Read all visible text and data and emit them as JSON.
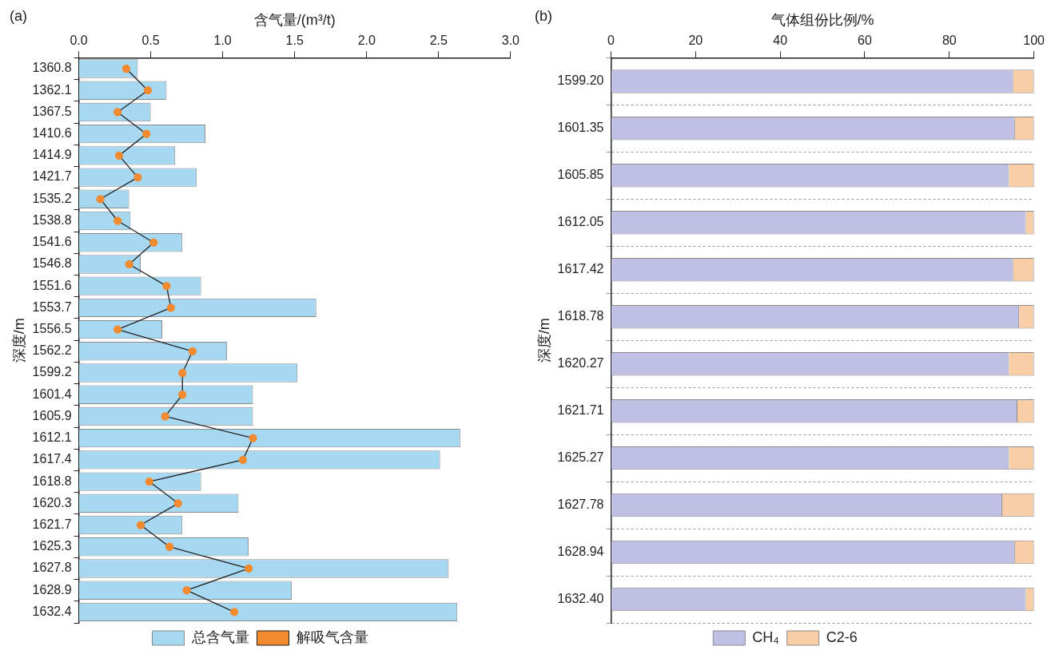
{
  "chart_data": [
    {
      "type": "bar",
      "orientation": "horizontal",
      "title": "(a)",
      "xlabel": "含气量/(m³/t)",
      "ylabel": "深度/m",
      "xlim": [
        0,
        3
      ],
      "xticks": [
        {
          "value": 0,
          "label": "0.0"
        },
        0.5,
        {
          "value": 1,
          "label": "1.0"
        },
        1.5,
        {
          "value": 2,
          "label": "2.0"
        },
        2.5,
        {
          "value": 3,
          "label": "3.0"
        }
      ],
      "legend": "bottom",
      "marker": "circle",
      "categories": [
        "1360.8",
        "1362.1",
        "1367.5",
        "1410.6",
        "1414.9",
        "1421.7",
        "1535.2",
        "1538.8",
        "1541.6",
        "1546.8",
        "1551.6",
        "1553.7",
        "1556.5",
        "1562.2",
        "1599.2",
        "1601.4",
        "1605.9",
        "1612.1",
        "1617.4",
        "1618.8",
        "1620.3",
        "1621.7",
        "1625.3",
        "1627.8",
        "1628.9",
        "1632.4"
      ],
      "series": [
        {
          "name": "总含气量",
          "color": "#a6d8f2",
          "values": [
            0.41,
            0.61,
            0.5,
            0.88,
            0.67,
            0.82,
            0.35,
            0.36,
            0.72,
            0.43,
            0.85,
            1.65,
            0.58,
            1.03,
            1.52,
            1.21,
            1.21,
            2.65,
            2.51,
            0.85,
            1.11,
            0.72,
            1.18,
            2.57,
            1.48,
            2.63
          ]
        },
        {
          "name": "解吸气含量",
          "type": "line",
          "color": "#f28a30",
          "values": [
            0.33,
            0.48,
            0.27,
            0.47,
            0.28,
            0.41,
            0.15,
            0.27,
            0.52,
            0.35,
            0.61,
            0.64,
            0.27,
            0.79,
            0.72,
            0.72,
            0.6,
            1.21,
            1.14,
            0.49,
            0.69,
            0.43,
            0.63,
            1.18,
            0.75,
            1.08
          ]
        }
      ]
    },
    {
      "type": "bar",
      "orientation": "horizontal",
      "stacked": true,
      "title": "(b)",
      "xlabel": "气体组份比例/%",
      "ylabel": "深度/m",
      "xlim": [
        0,
        100
      ],
      "xticks": [
        0,
        20,
        40,
        60,
        80,
        100
      ],
      "legend": "bottom",
      "grid": "y",
      "categories": [
        "1599.20",
        "1601.35",
        "1605.85",
        "1612.05",
        "1617.42",
        "1618.78",
        "1620.27",
        "1621.71",
        "1625.27",
        "1627.78",
        "1628.94",
        "1632.40"
      ],
      "series": [
        {
          "name": "CH₄",
          "color": "#c0c0e4",
          "values": [
            95.1,
            95.5,
            94.1,
            98.1,
            95.1,
            96.5,
            94.1,
            96.1,
            94.1,
            92.5,
            95.5,
            98.1
          ]
        },
        {
          "name": "C2-6",
          "color": "#f9cda5",
          "values": [
            4.9,
            4.5,
            5.9,
            1.9,
            4.9,
            3.5,
            5.9,
            3.9,
            5.9,
            7.5,
            4.5,
            1.9
          ]
        }
      ]
    }
  ]
}
